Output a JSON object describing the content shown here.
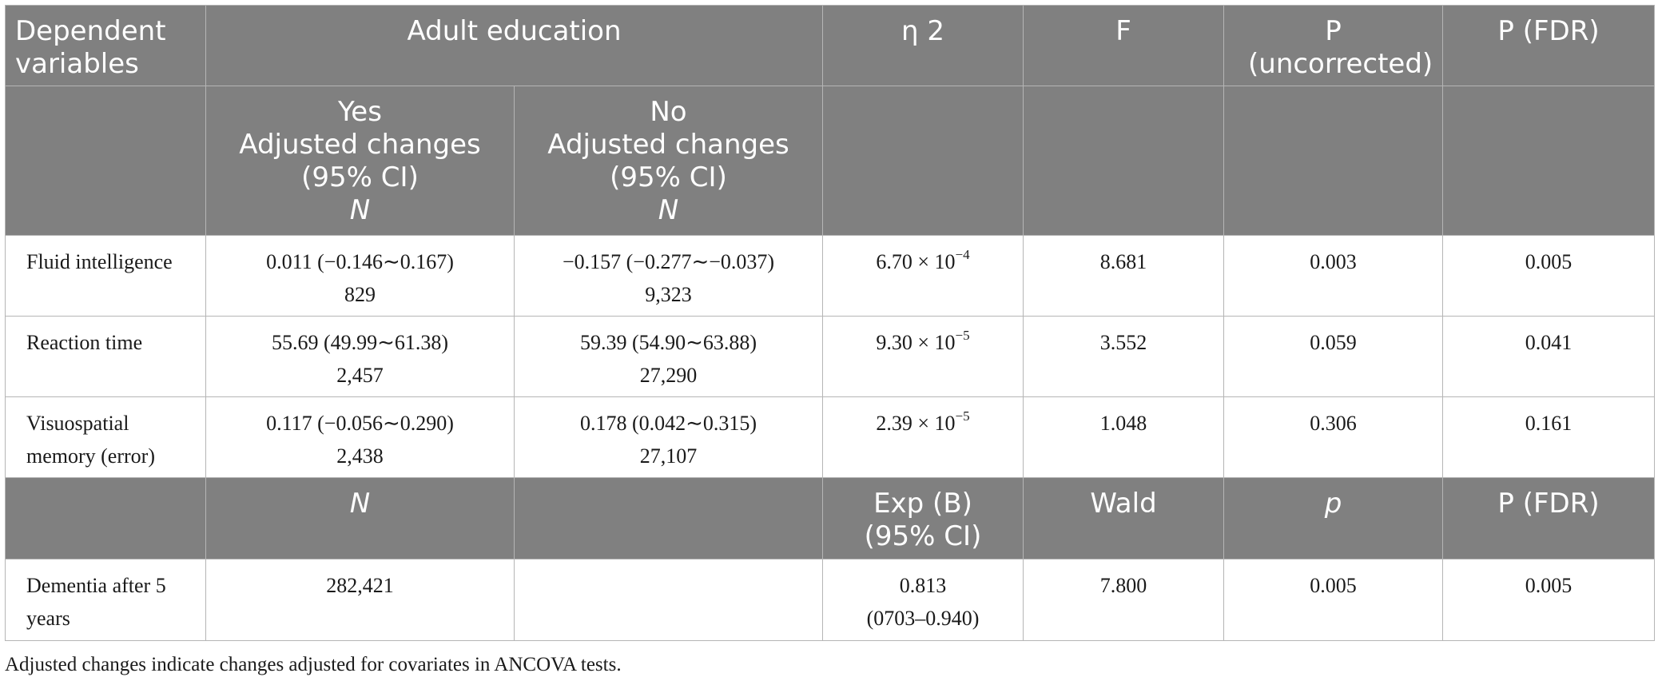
{
  "table": {
    "header1": {
      "dependent": "Dependent variables",
      "adult_education": "Adult education",
      "eta2": "η 2",
      "f": "F",
      "p_uncorrected": "P (uncorrected)",
      "p_fdr": "P (FDR)"
    },
    "header2": {
      "yes": [
        "Yes",
        "Adjusted changes",
        "(95% CI)"
      ],
      "yes_n": "N",
      "no": [
        "No",
        "Adjusted changes",
        "(95% CI)"
      ],
      "no_n": "N"
    },
    "rows": [
      {
        "variable": "Fluid intelligence",
        "yes_ci": "0.011 (−0.146∼0.167)",
        "yes_n": "829",
        "no_ci": "−0.157 (−0.277∼−0.037)",
        "no_n": "9,323",
        "eta2_base": "6.70 × 10",
        "eta2_exp": "−4",
        "f": "8.681",
        "p_uncorrected": "0.003",
        "p_fdr": "0.005"
      },
      {
        "variable": "Reaction time",
        "yes_ci": "55.69 (49.99∼61.38)",
        "yes_n": "2,457",
        "no_ci": "59.39 (54.90∼63.88)",
        "no_n": "27,290",
        "eta2_base": "9.30 × 10",
        "eta2_exp": "−5",
        "f": "3.552",
        "p_uncorrected": "0.059",
        "p_fdr": "0.041"
      },
      {
        "variable": "Visuospatial memory (error)",
        "yes_ci": "0.117 (−0.056∼0.290)",
        "yes_n": "2,438",
        "no_ci": "0.178 (0.042∼0.315)",
        "no_n": "27,107",
        "eta2_base": "2.39 × 10",
        "eta2_exp": "−5",
        "f": "1.048",
        "p_uncorrected": "0.306",
        "p_fdr": "0.161"
      }
    ],
    "header3": {
      "n": "N",
      "exp_b": [
        "Exp (B)",
        "(95% CI)"
      ],
      "wald": "Wald",
      "p": "p",
      "p_fdr": "P (FDR)"
    },
    "dementia_row": {
      "variable": "Dementia after 5 years",
      "n": "282,421",
      "exp_b": "0.813",
      "exp_b_ci": "(0703–0.940)",
      "wald": "7.800",
      "p": "0.005",
      "p_fdr": "0.005"
    }
  },
  "footnote": "Adjusted changes indicate changes adjusted for covariates in ANCOVA tests."
}
